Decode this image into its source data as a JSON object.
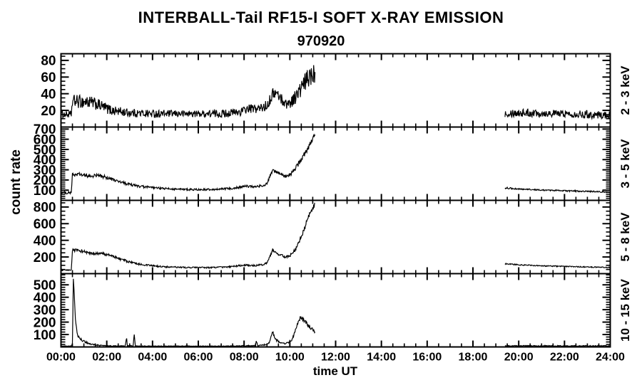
{
  "chart_data": {
    "type": "line",
    "title": "INTERBALL-Tail RF15-I SOFT X-RAY EMISSION",
    "subtitle": "970920",
    "xlabel": "time UT",
    "ylabel": "count rate",
    "line_color": "#000000",
    "background": "#ffffff",
    "grid": "off",
    "xlim_hours": [
      0,
      24
    ],
    "x_tick_hours": [
      0,
      2,
      4,
      6,
      8,
      10,
      12,
      14,
      16,
      18,
      20,
      22,
      24
    ],
    "x_tick_labels": [
      "00:00",
      "02:00",
      "04:00",
      "06:00",
      "08:00",
      "10:00",
      "12:00",
      "14:00",
      "16:00",
      "18:00",
      "20:00",
      "22:00",
      "24:00"
    ],
    "x_minor_step_hours": 0.5,
    "data_gap_hours": [
      11.1,
      19.4
    ],
    "panels": [
      {
        "label": "2 - 3 keV",
        "ylim": [
          0,
          88
        ],
        "yticks": [
          20,
          40,
          60,
          80
        ],
        "y_minor_step": 5,
        "segments_tvn": [
          [
            [
              0,
              15,
              4
            ],
            [
              0.45,
              15,
              4
            ],
            [
              0.5,
              31,
              8
            ],
            [
              1.2,
              30,
              8
            ],
            [
              1.6,
              27,
              7
            ],
            [
              2.2,
              20,
              6
            ],
            [
              3,
              17,
              5
            ],
            [
              4,
              16,
              5
            ],
            [
              5,
              16,
              4
            ],
            [
              6,
              16,
              4
            ],
            [
              7,
              16,
              5
            ],
            [
              7.8,
              18,
              5
            ],
            [
              8.2,
              22,
              5
            ],
            [
              8.7,
              22,
              6
            ],
            [
              9,
              26,
              6
            ],
            [
              9.3,
              42,
              7
            ],
            [
              9.5,
              38,
              7
            ],
            [
              9.8,
              28,
              6
            ],
            [
              10,
              29,
              7
            ],
            [
              10.3,
              38,
              9
            ],
            [
              10.6,
              50,
              12
            ],
            [
              10.9,
              63,
              13
            ],
            [
              11.1,
              66,
              13
            ]
          ],
          [
            [
              19.4,
              17,
              5
            ],
            [
              20.5,
              17,
              5
            ],
            [
              22,
              16,
              4
            ],
            [
              23.2,
              15,
              5
            ],
            [
              24,
              14,
              4
            ]
          ]
        ]
      },
      {
        "label": "3 - 5 keV",
        "ylim": [
          0,
          720
        ],
        "yticks": [
          100,
          200,
          300,
          400,
          500,
          600,
          700
        ],
        "y_minor_step": 20,
        "segments_tvn": [
          [
            [
              0,
              75,
              12
            ],
            [
              0.45,
              75,
              12
            ],
            [
              0.5,
              250,
              18
            ],
            [
              0.8,
              255,
              18
            ],
            [
              1.2,
              235,
              18
            ],
            [
              1.6,
              245,
              18
            ],
            [
              2,
              225,
              18
            ],
            [
              2.5,
              185,
              15
            ],
            [
              3,
              155,
              14
            ],
            [
              3.5,
              135,
              12
            ],
            [
              4.2,
              120,
              10
            ],
            [
              5,
              110,
              9
            ],
            [
              6,
              105,
              9
            ],
            [
              6.8,
              108,
              9
            ],
            [
              7.5,
              118,
              10
            ],
            [
              8.1,
              140,
              12
            ],
            [
              8.5,
              133,
              12
            ],
            [
              8.8,
              145,
              12
            ],
            [
              9,
              160,
              14
            ],
            [
              9.25,
              298,
              18
            ],
            [
              9.5,
              268,
              16
            ],
            [
              9.8,
              238,
              16
            ],
            [
              10,
              248,
              18
            ],
            [
              10.3,
              330,
              22
            ],
            [
              10.6,
              440,
              26
            ],
            [
              10.9,
              560,
              30
            ],
            [
              11.1,
              635,
              30
            ]
          ],
          [
            [
              19.4,
              122,
              8
            ],
            [
              20.3,
              108,
              7
            ],
            [
              21.5,
              97,
              7
            ],
            [
              23,
              88,
              7
            ],
            [
              24,
              82,
              7
            ]
          ]
        ]
      },
      {
        "label": "5 - 8 keV",
        "ylim": [
          0,
          880
        ],
        "yticks": [
          200,
          400,
          600,
          800
        ],
        "y_minor_step": 50,
        "segments_tvn": [
          [
            [
              0,
              40,
              8
            ],
            [
              0.45,
              40,
              8
            ],
            [
              0.5,
              285,
              18
            ],
            [
              0.9,
              272,
              18
            ],
            [
              1.4,
              235,
              16
            ],
            [
              1.8,
              242,
              16
            ],
            [
              2.2,
              215,
              15
            ],
            [
              2.7,
              165,
              14
            ],
            [
              3.2,
              125,
              12
            ],
            [
              3.8,
              100,
              10
            ],
            [
              4.5,
              82,
              9
            ],
            [
              5.5,
              73,
              8
            ],
            [
              6.5,
              73,
              8
            ],
            [
              7.3,
              80,
              9
            ],
            [
              8,
              102,
              10
            ],
            [
              8.5,
              97,
              10
            ],
            [
              8.8,
              108,
              11
            ],
            [
              9,
              125,
              12
            ],
            [
              9.25,
              288,
              18
            ],
            [
              9.5,
              235,
              15
            ],
            [
              9.8,
              200,
              14
            ],
            [
              10,
              215,
              16
            ],
            [
              10.3,
              310,
              22
            ],
            [
              10.6,
              520,
              28
            ],
            [
              10.9,
              730,
              34
            ],
            [
              11.1,
              845,
              36
            ]
          ],
          [
            [
              19.4,
              118,
              7
            ],
            [
              20.3,
              102,
              6
            ],
            [
              21.5,
              90,
              6
            ],
            [
              23,
              80,
              6
            ],
            [
              24,
              74,
              6
            ]
          ]
        ]
      },
      {
        "label": "10 - 15 keV",
        "ylim": [
          0,
          590
        ],
        "yticks": [
          100,
          200,
          300,
          400,
          500
        ],
        "y_minor_step": 20,
        "segments_tvn": [
          [
            [
              0,
              6,
              3
            ],
            [
              0.45,
              6,
              3
            ],
            [
              0.5,
              30,
              6
            ],
            [
              0.54,
              555,
              8
            ],
            [
              0.58,
              420,
              15
            ],
            [
              0.63,
              230,
              15
            ],
            [
              0.7,
              105,
              12
            ],
            [
              0.8,
              70,
              10
            ],
            [
              1,
              45,
              8
            ],
            [
              1.3,
              22,
              6
            ],
            [
              1.7,
              12,
              4
            ],
            [
              2.2,
              8,
              3
            ],
            [
              2.8,
              8,
              3
            ],
            [
              2.87,
              70,
              6
            ],
            [
              2.9,
              9,
              3
            ],
            [
              3.15,
              9,
              3
            ],
            [
              3.2,
              100,
              6
            ],
            [
              3.25,
              8,
              3
            ],
            [
              4,
              6,
              3
            ],
            [
              5,
              6,
              3
            ],
            [
              6,
              6,
              3
            ],
            [
              7,
              6,
              3
            ],
            [
              7.7,
              7,
              3
            ],
            [
              8,
              10,
              4
            ],
            [
              8.5,
              9,
              4
            ],
            [
              8.53,
              48,
              6
            ],
            [
              8.6,
              10,
              4
            ],
            [
              8.9,
              18,
              5
            ],
            [
              9.1,
              35,
              7
            ],
            [
              9.25,
              120,
              12
            ],
            [
              9.4,
              55,
              9
            ],
            [
              9.7,
              28,
              7
            ],
            [
              9.9,
              30,
              7
            ],
            [
              10.1,
              60,
              10
            ],
            [
              10.45,
              235,
              18
            ],
            [
              10.7,
              200,
              16
            ],
            [
              10.9,
              155,
              14
            ],
            [
              11.1,
              122,
              12
            ]
          ],
          [
            [
              19.4,
              8,
              4
            ],
            [
              21,
              8,
              4
            ],
            [
              22.5,
              8,
              4
            ],
            [
              24,
              8,
              4
            ]
          ]
        ]
      }
    ]
  }
}
